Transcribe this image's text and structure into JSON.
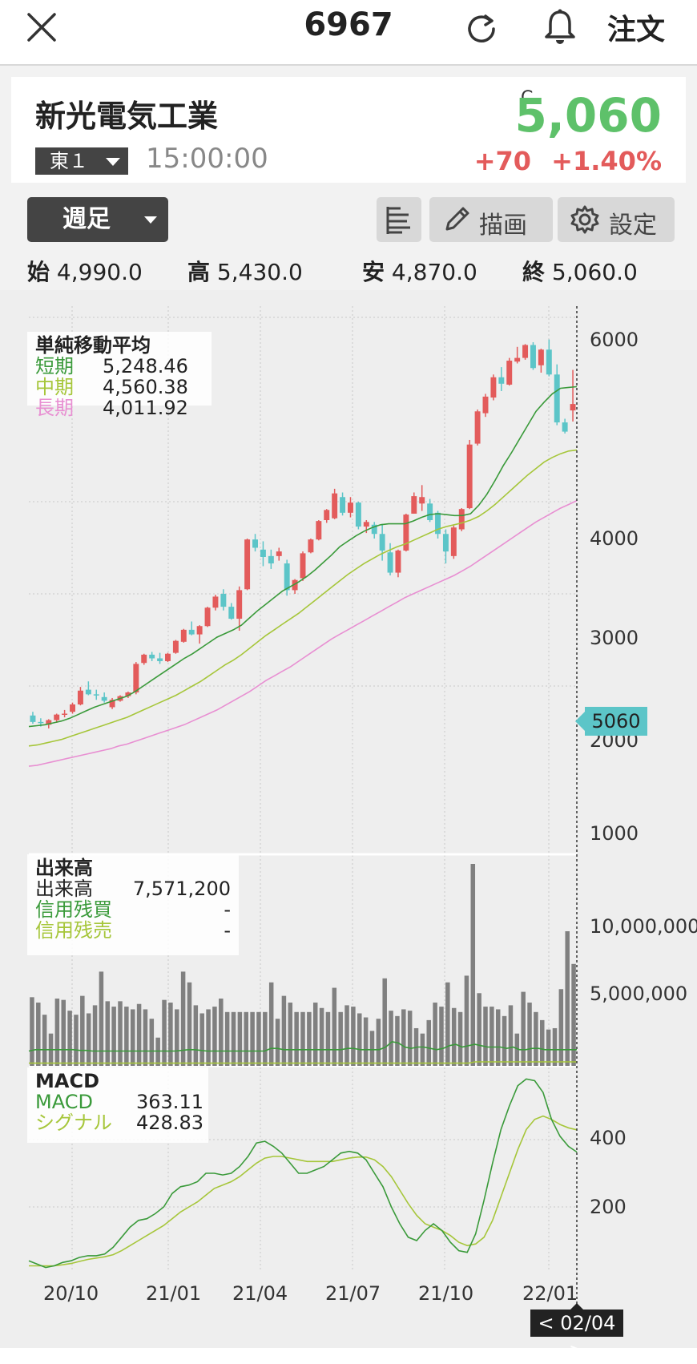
{
  "header": {
    "code": "6967",
    "order_label": "注文"
  },
  "summary": {
    "company_name": "新光電気工業",
    "exchange": "東１",
    "time": "15:00:00",
    "close_mark": "C",
    "price": "5,060",
    "change": "+70",
    "change_pct": "+1.40%"
  },
  "controls": {
    "period": "週足",
    "draw_label": "描画",
    "settings_label": "設定"
  },
  "ohlc": {
    "open_label": "始",
    "open": "4,990.0",
    "high_label": "高",
    "high": "5,430.0",
    "low_label": "安",
    "low": "4,870.0",
    "close_label": "終",
    "close": "5,060.0"
  },
  "ma_legend": {
    "title": "単純移動平均",
    "short_label": "短期",
    "short_value": "5,248.46",
    "mid_label": "中期",
    "mid_value": "4,560.38",
    "long_label": "長期",
    "long_value": "4,011.92"
  },
  "volume_legend": {
    "title": "出来高",
    "volume_label": "出来高",
    "volume_value": "7,571,200",
    "margin_buy_label": "信用残買",
    "margin_buy_value": "-",
    "margin_sell_label": "信用残売",
    "margin_sell_value": "-"
  },
  "macd_legend": {
    "title": "MACD",
    "macd_label": "MACD",
    "macd_value": "363.11",
    "signal_label": "シグナル",
    "signal_value": "428.83"
  },
  "price_tag": "5060",
  "cursor_date": "< 02/04 >",
  "colors": {
    "up": "#e35b5b",
    "down": "#5cc5c8",
    "short_ma": "#3a9a3a",
    "mid_ma": "#a6c63a",
    "long_ma": "#e88fd2",
    "price_up": "#5ec16a"
  },
  "chart_data": [
    {
      "type": "candlestick",
      "title": "単純移動平均",
      "x_ticks": [
        "20/10",
        "21/01",
        "21/04",
        "21/07",
        "21/10",
        "22/01"
      ],
      "y_ticks": [
        6000,
        4000,
        3000,
        2000,
        1000
      ],
      "candles": [
        {
          "o": 1680,
          "h": 1720,
          "l": 1590,
          "c": 1610
        },
        {
          "o": 1610,
          "h": 1650,
          "l": 1560,
          "c": 1600
        },
        {
          "o": 1580,
          "h": 1640,
          "l": 1540,
          "c": 1630
        },
        {
          "o": 1630,
          "h": 1700,
          "l": 1600,
          "c": 1690
        },
        {
          "o": 1690,
          "h": 1740,
          "l": 1660,
          "c": 1700
        },
        {
          "o": 1720,
          "h": 1820,
          "l": 1700,
          "c": 1800
        },
        {
          "o": 1800,
          "h": 1990,
          "l": 1790,
          "c": 1950
        },
        {
          "o": 1960,
          "h": 2050,
          "l": 1900,
          "c": 1910
        },
        {
          "o": 1910,
          "h": 1960,
          "l": 1850,
          "c": 1900
        },
        {
          "o": 1880,
          "h": 1930,
          "l": 1820,
          "c": 1840
        },
        {
          "o": 1770,
          "h": 1870,
          "l": 1750,
          "c": 1850
        },
        {
          "o": 1840,
          "h": 1900,
          "l": 1830,
          "c": 1890
        },
        {
          "o": 1890,
          "h": 1940,
          "l": 1870,
          "c": 1930
        },
        {
          "o": 1930,
          "h": 2260,
          "l": 1910,
          "c": 2240
        },
        {
          "o": 2250,
          "h": 2350,
          "l": 2230,
          "c": 2340
        },
        {
          "o": 2340,
          "h": 2370,
          "l": 2270,
          "c": 2300
        },
        {
          "o": 2300,
          "h": 2360,
          "l": 2240,
          "c": 2270
        },
        {
          "o": 2270,
          "h": 2360,
          "l": 2260,
          "c": 2350
        },
        {
          "o": 2360,
          "h": 2500,
          "l": 2350,
          "c": 2490
        },
        {
          "o": 2480,
          "h": 2620,
          "l": 2470,
          "c": 2610
        },
        {
          "o": 2610,
          "h": 2700,
          "l": 2550,
          "c": 2560
        },
        {
          "o": 2560,
          "h": 2660,
          "l": 2460,
          "c": 2650
        },
        {
          "o": 2650,
          "h": 2860,
          "l": 2640,
          "c": 2850
        },
        {
          "o": 2850,
          "h": 2990,
          "l": 2820,
          "c": 2970
        },
        {
          "o": 3000,
          "h": 3050,
          "l": 2820,
          "c": 2860
        },
        {
          "o": 2860,
          "h": 2900,
          "l": 2720,
          "c": 2730
        },
        {
          "o": 2730,
          "h": 3080,
          "l": 2600,
          "c": 3040
        },
        {
          "o": 3050,
          "h": 3600,
          "l": 3040,
          "c": 3590
        },
        {
          "o": 3590,
          "h": 3650,
          "l": 3460,
          "c": 3500
        },
        {
          "o": 3480,
          "h": 3570,
          "l": 3300,
          "c": 3400
        },
        {
          "o": 3410,
          "h": 3480,
          "l": 3270,
          "c": 3330
        },
        {
          "o": 3410,
          "h": 3500,
          "l": 3360,
          "c": 3460
        },
        {
          "o": 3330,
          "h": 3370,
          "l": 2980,
          "c": 3040
        },
        {
          "o": 3040,
          "h": 3160,
          "l": 3000,
          "c": 3150
        },
        {
          "o": 3170,
          "h": 3460,
          "l": 3140,
          "c": 3440
        },
        {
          "o": 3450,
          "h": 3600,
          "l": 3440,
          "c": 3590
        },
        {
          "o": 3590,
          "h": 3800,
          "l": 3580,
          "c": 3790
        },
        {
          "o": 3800,
          "h": 3920,
          "l": 3770,
          "c": 3910
        },
        {
          "o": 3820,
          "h": 4140,
          "l": 3810,
          "c": 4090
        },
        {
          "o": 4050,
          "h": 4100,
          "l": 3850,
          "c": 3880
        },
        {
          "o": 3880,
          "h": 4050,
          "l": 3830,
          "c": 3990
        },
        {
          "o": 3990,
          "h": 4000,
          "l": 3700,
          "c": 3730
        },
        {
          "o": 3730,
          "h": 3800,
          "l": 3660,
          "c": 3780
        },
        {
          "o": 3750,
          "h": 3780,
          "l": 3600,
          "c": 3650
        },
        {
          "o": 3650,
          "h": 3760,
          "l": 3360,
          "c": 3470
        },
        {
          "o": 3450,
          "h": 3550,
          "l": 3200,
          "c": 3230
        },
        {
          "o": 3230,
          "h": 3480,
          "l": 3180,
          "c": 3470
        },
        {
          "o": 3470,
          "h": 3870,
          "l": 3460,
          "c": 3860
        },
        {
          "o": 3870,
          "h": 4100,
          "l": 3870,
          "c": 4060
        },
        {
          "o": 3980,
          "h": 4180,
          "l": 3900,
          "c": 4050
        },
        {
          "o": 3980,
          "h": 4030,
          "l": 3780,
          "c": 3800
        },
        {
          "o": 3880,
          "h": 3900,
          "l": 3600,
          "c": 3650
        },
        {
          "o": 3650,
          "h": 3700,
          "l": 3330,
          "c": 3460
        },
        {
          "o": 3410,
          "h": 3740,
          "l": 3380,
          "c": 3720
        },
        {
          "o": 3700,
          "h": 3930,
          "l": 3680,
          "c": 3920
        },
        {
          "o": 3930,
          "h": 4670,
          "l": 3920,
          "c": 4620
        },
        {
          "o": 4630,
          "h": 5000,
          "l": 4610,
          "c": 4980
        },
        {
          "o": 4960,
          "h": 5170,
          "l": 4920,
          "c": 5140
        },
        {
          "o": 5130,
          "h": 5380,
          "l": 5100,
          "c": 5350
        },
        {
          "o": 5350,
          "h": 5460,
          "l": 5200,
          "c": 5280
        },
        {
          "o": 5270,
          "h": 5560,
          "l": 5260,
          "c": 5530
        },
        {
          "o": 5520,
          "h": 5680,
          "l": 5500,
          "c": 5560
        },
        {
          "o": 5560,
          "h": 5710,
          "l": 5540,
          "c": 5700
        },
        {
          "o": 5700,
          "h": 5730,
          "l": 5430,
          "c": 5450
        },
        {
          "o": 5480,
          "h": 5660,
          "l": 5400,
          "c": 5650
        },
        {
          "o": 5650,
          "h": 5760,
          "l": 5360,
          "c": 5380
        },
        {
          "o": 5380,
          "h": 5490,
          "l": 4830,
          "c": 4860
        },
        {
          "o": 4860,
          "h": 4900,
          "l": 4740,
          "c": 4760
        },
        {
          "o": 4990,
          "h": 5430,
          "l": 4870,
          "c": 5060
        }
      ],
      "short_ma": [
        1560,
        1570,
        1580,
        1600,
        1620,
        1650,
        1690,
        1730,
        1770,
        1800,
        1830,
        1860,
        1890,
        1940,
        2000,
        2060,
        2120,
        2180,
        2240,
        2300,
        2350,
        2410,
        2470,
        2530,
        2570,
        2610,
        2660,
        2740,
        2820,
        2890,
        2960,
        3030,
        3080,
        3130,
        3190,
        3260,
        3340,
        3420,
        3510,
        3570,
        3630,
        3680,
        3720,
        3750,
        3760,
        3760,
        3760,
        3790,
        3830,
        3860,
        3870,
        3860,
        3850,
        3850,
        3870,
        3960,
        4080,
        4230,
        4390,
        4530,
        4680,
        4830,
        4980,
        5080,
        5170,
        5230,
        5240,
        5248
      ],
      "mid_ma": [
        1350,
        1360,
        1380,
        1400,
        1420,
        1450,
        1480,
        1510,
        1540,
        1570,
        1600,
        1630,
        1660,
        1700,
        1740,
        1780,
        1820,
        1860,
        1900,
        1950,
        2000,
        2050,
        2110,
        2170,
        2230,
        2280,
        2340,
        2410,
        2480,
        2550,
        2610,
        2670,
        2730,
        2790,
        2860,
        2930,
        3000,
        3070,
        3140,
        3210,
        3270,
        3330,
        3380,
        3430,
        3470,
        3510,
        3540,
        3580,
        3620,
        3660,
        3700,
        3730,
        3750,
        3770,
        3800,
        3840,
        3900,
        3970,
        4050,
        4130,
        4210,
        4290,
        4360,
        4430,
        4480,
        4520,
        4550,
        4560
      ],
      "long_ma": [
        1130,
        1140,
        1160,
        1180,
        1200,
        1220,
        1240,
        1260,
        1280,
        1300,
        1320,
        1350,
        1370,
        1400,
        1430,
        1460,
        1490,
        1520,
        1550,
        1580,
        1620,
        1660,
        1700,
        1740,
        1790,
        1840,
        1890,
        1940,
        2000,
        2060,
        2110,
        2160,
        2210,
        2270,
        2330,
        2390,
        2450,
        2510,
        2560,
        2610,
        2660,
        2710,
        2760,
        2810,
        2860,
        2910,
        2960,
        3000,
        3040,
        3080,
        3120,
        3160,
        3200,
        3250,
        3300,
        3360,
        3420,
        3480,
        3540,
        3600,
        3660,
        3720,
        3780,
        3830,
        3880,
        3930,
        3970,
        4012
      ]
    },
    {
      "type": "bar",
      "title": "出来高",
      "y_ticks": [
        "10,000,000",
        "5,000,000"
      ],
      "values": [
        5100,
        4700,
        3800,
        2400,
        5000,
        4900,
        4100,
        3800,
        5200,
        3900,
        4500,
        7000,
        4800,
        4400,
        4800,
        4400,
        4200,
        4600,
        4200,
        3500,
        2100,
        4900,
        4700,
        4200,
        7000,
        6200,
        4500,
        3900,
        4200,
        4400,
        5000,
        4000,
        4000,
        4000,
        4000,
        4000,
        4000,
        4000,
        6200,
        3500,
        5200,
        4700,
        4000,
        4000,
        4000,
        4700,
        4300,
        4000,
        5800,
        4000,
        4500,
        4400,
        3900,
        3600,
        2600,
        3500,
        6500,
        4100,
        3700,
        4200,
        4100,
        2800,
        2400,
        3400,
        4700,
        4400,
        6200,
        4300,
        4000,
        6700,
        15000,
        5400,
        4400,
        4400,
        4200,
        3700,
        4500,
        2400,
        5500,
        4700,
        4000,
        3400,
        2700,
        2800,
        5700,
        10000,
        7571
      ],
      "margin_buy": [
        1100,
        1200,
        1200,
        1200,
        1200,
        1200,
        1200,
        1200,
        1150,
        1150,
        1100,
        1100,
        1100,
        1100,
        1100,
        1100,
        1100,
        1100,
        1100,
        1100,
        1100,
        1100,
        1100,
        1100,
        1150,
        1200,
        1200,
        1150,
        1100,
        1100,
        1100,
        1100,
        1100,
        1100,
        1100,
        1100,
        1100,
        1100,
        1300,
        1300,
        1200,
        1200,
        1200,
        1200,
        1200,
        1200,
        1200,
        1200,
        1200,
        1200,
        1300,
        1300,
        1200,
        1200,
        1200,
        1200,
        1400,
        1800,
        1700,
        1400,
        1300,
        1400,
        1400,
        1300,
        1200,
        1300,
        1500,
        1600,
        1400,
        1500,
        1600,
        1500,
        1400,
        1400,
        1400,
        1300,
        1400,
        1200,
        1200,
        1300,
        1300,
        1200,
        1200,
        1200,
        1200,
        1200,
        1200
      ],
      "margin_sell": [
        200,
        200,
        200,
        200,
        200,
        200,
        200,
        200,
        200,
        200,
        200,
        200,
        200,
        200,
        200,
        200,
        200,
        200,
        200,
        200,
        200,
        200,
        200,
        200,
        200,
        200,
        200,
        200,
        200,
        200,
        200,
        200,
        200,
        200,
        200,
        200,
        200,
        200,
        200,
        200,
        200,
        200,
        200,
        200,
        200,
        200,
        200,
        200,
        200,
        200,
        200,
        200,
        200,
        200,
        200,
        200,
        200,
        200,
        200,
        200,
        200,
        200,
        200,
        200,
        200,
        200,
        200,
        200,
        200,
        200,
        300,
        300,
        300,
        300,
        300,
        300,
        300,
        300,
        300,
        300,
        300,
        300,
        300,
        300,
        300,
        300,
        300
      ]
    },
    {
      "type": "line",
      "title": "MACD",
      "y_ticks": [
        400,
        200
      ],
      "series": [
        {
          "name": "MACD",
          "values": [
            40,
            30,
            20,
            25,
            35,
            40,
            50,
            55,
            55,
            60,
            80,
            110,
            140,
            160,
            165,
            180,
            200,
            240,
            260,
            265,
            275,
            300,
            300,
            295,
            300,
            320,
            350,
            390,
            395,
            380,
            360,
            330,
            300,
            300,
            310,
            320,
            340,
            360,
            365,
            360,
            340,
            300,
            260,
            200,
            150,
            110,
            100,
            130,
            150,
            130,
            95,
            70,
            65,
            120,
            220,
            330,
            430,
            500,
            560,
            580,
            575,
            540,
            460,
            410,
            380,
            363
          ]
        },
        {
          "name": "シグナル",
          "values": [
            25,
            25,
            25,
            25,
            28,
            32,
            38,
            44,
            48,
            52,
            58,
            70,
            85,
            100,
            115,
            130,
            145,
            165,
            185,
            200,
            215,
            235,
            255,
            265,
            275,
            290,
            310,
            330,
            345,
            350,
            350,
            345,
            340,
            335,
            335,
            335,
            335,
            340,
            345,
            348,
            348,
            340,
            320,
            290,
            250,
            210,
            175,
            150,
            140,
            130,
            115,
            95,
            85,
            90,
            110,
            160,
            230,
            300,
            370,
            430,
            460,
            470,
            460,
            445,
            435,
            429
          ]
        }
      ]
    }
  ]
}
